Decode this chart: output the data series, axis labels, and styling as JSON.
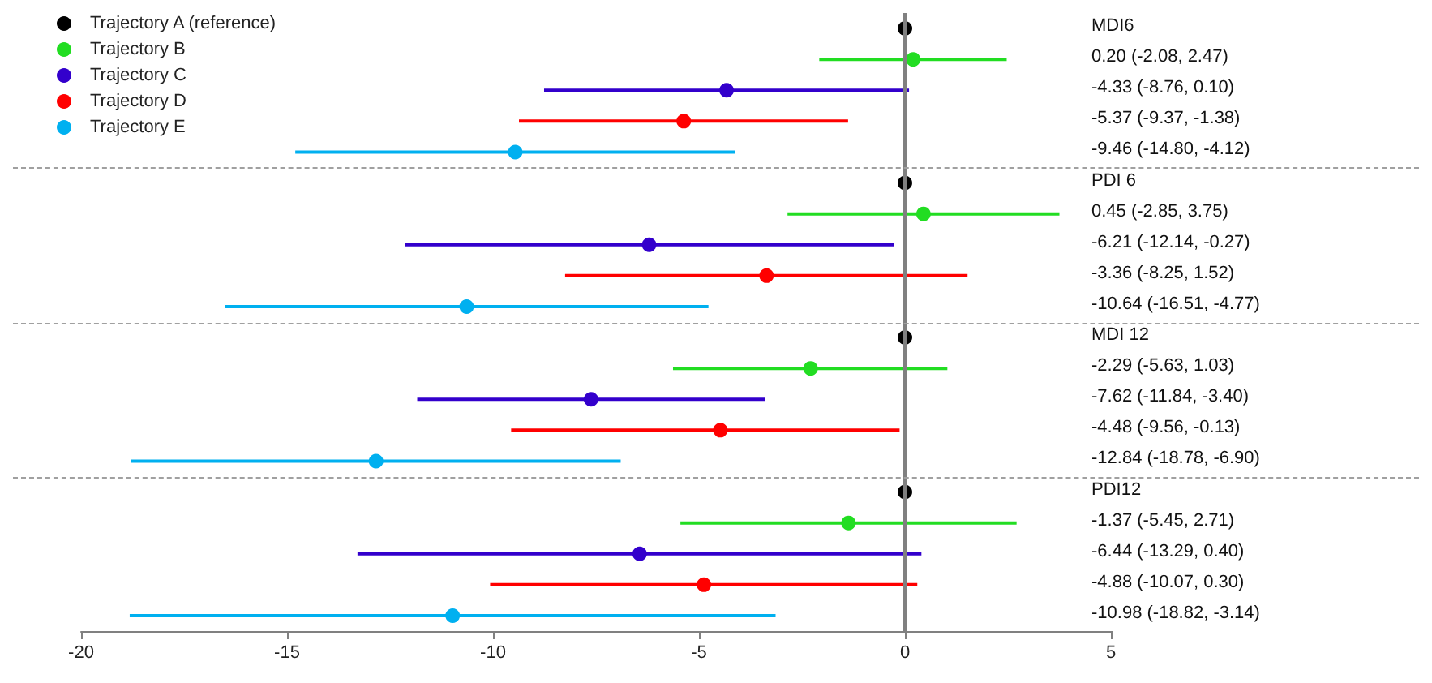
{
  "chart_data": {
    "type": "scatter",
    "orientation": "horizontal",
    "categories": [
      null,
      null,
      null,
      null,
      null,
      null,
      null,
      null,
      null,
      null,
      null,
      null,
      null,
      null,
      null,
      null,
      null,
      null,
      null,
      null
    ],
    "xlim": [
      -20,
      5
    ],
    "xticks": [
      -20,
      -15,
      -10,
      -5,
      0,
      5
    ],
    "grid": false,
    "legend": "top left",
    "marker": "circle",
    "tick_labels": "x",
    "ref_lines": [
      {
        "axis": "x",
        "value": 0,
        "color": "#808080"
      }
    ],
    "series": [
      {
        "name": "Trajectory A (reference)",
        "color": "#000000",
        "values": [
          0,
          null,
          null,
          null,
          null,
          0,
          null,
          null,
          null,
          null,
          0,
          null,
          null,
          null,
          null,
          0,
          null,
          null,
          null,
          null
        ],
        "errors": [
          null,
          null,
          null,
          null,
          null,
          null,
          null,
          null,
          null,
          null,
          null,
          null,
          null,
          null,
          null,
          null,
          null,
          null,
          null,
          null
        ]
      },
      {
        "name": "Trajectory B",
        "color": "#22dd22",
        "values": [
          null,
          0.2,
          null,
          null,
          null,
          null,
          0.45,
          null,
          null,
          null,
          null,
          -2.29,
          null,
          null,
          null,
          null,
          -1.37,
          null,
          null,
          null
        ],
        "errors": [
          null,
          [
            -2.08,
            2.47
          ],
          null,
          null,
          null,
          null,
          [
            -2.85,
            3.75
          ],
          null,
          null,
          null,
          null,
          [
            -5.63,
            1.03
          ],
          null,
          null,
          null,
          null,
          [
            -5.45,
            2.71
          ],
          null,
          null,
          null
        ]
      },
      {
        "name": "Trajectory C",
        "color": "#3300cc",
        "values": [
          null,
          null,
          -4.33,
          null,
          null,
          null,
          null,
          -6.21,
          null,
          null,
          null,
          null,
          -7.62,
          null,
          null,
          null,
          null,
          -6.44,
          null,
          null
        ],
        "errors": [
          null,
          null,
          [
            -8.76,
            0.1
          ],
          null,
          null,
          null,
          null,
          [
            -12.14,
            -0.27
          ],
          null,
          null,
          null,
          null,
          [
            -11.84,
            -3.4
          ],
          null,
          null,
          null,
          null,
          [
            -13.29,
            0.4
          ],
          null,
          null
        ]
      },
      {
        "name": "Trajectory D",
        "color": "#ff0000",
        "values": [
          null,
          null,
          null,
          -5.37,
          null,
          null,
          null,
          null,
          -3.36,
          null,
          null,
          null,
          null,
          -4.48,
          null,
          null,
          null,
          null,
          -4.88,
          null
        ],
        "errors": [
          null,
          null,
          null,
          [
            -9.37,
            -1.38
          ],
          null,
          null,
          null,
          null,
          [
            -8.25,
            1.52
          ],
          null,
          null,
          null,
          null,
          [
            -9.56,
            -0.13
          ],
          null,
          null,
          null,
          null,
          [
            -10.07,
            0.3
          ],
          null
        ]
      },
      {
        "name": "Trajectory E",
        "color": "#00b0f0",
        "values": [
          null,
          null,
          null,
          null,
          -9.46,
          null,
          null,
          null,
          null,
          -10.64,
          null,
          null,
          null,
          null,
          -12.84,
          null,
          null,
          null,
          null,
          -10.98
        ],
        "errors": [
          null,
          null,
          null,
          null,
          [
            -14.8,
            -4.12
          ],
          null,
          null,
          null,
          null,
          [
            -16.51,
            -4.77
          ],
          null,
          null,
          null,
          null,
          [
            -18.78,
            -6.9
          ],
          null,
          null,
          null,
          null,
          [
            -18.82,
            -3.14
          ]
        ]
      }
    ],
    "annotations": [
      "MDI6",
      "0.20 (-2.08, 2.47)",
      "-4.33 (-8.76, 0.10)",
      "-5.37 (-9.37, -1.38)",
      "-9.46 (-14.80, -4.12)",
      "PDI 6",
      "0.45 (-2.85, 3.75)",
      "-6.21 (-12.14, -0.27)",
      "-3.36 (-8.25, 1.52)",
      "-10.64 (-16.51, -4.77)",
      "MDI 12",
      "-2.29 (-5.63, 1.03)",
      "-7.62 (-11.84, -3.40)",
      "-4.48 (-9.56, -0.13)",
      "-12.84 (-18.78, -6.90)",
      "PDI12",
      "-1.37 (-5.45, 2.71)",
      "-6.44 (-13.29, 0.40)",
      "-4.88 (-10.07, 0.30)",
      "-10.98 (-18.82, -3.14)"
    ]
  }
}
